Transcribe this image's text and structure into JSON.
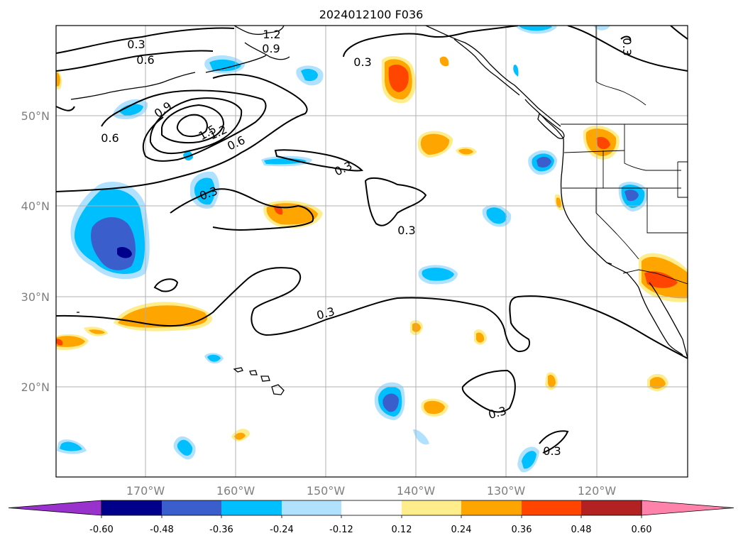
{
  "title": "2024012100 F036",
  "map": {
    "lat_labels": [
      "50°N",
      "40°N",
      "30°N",
      "20°N"
    ],
    "lon_labels": [
      "170°W",
      "160°W",
      "150°W",
      "140°W",
      "130°W",
      "120°W"
    ],
    "contour_labels": [
      "0.3",
      "0.6",
      "0.9",
      "1.2",
      "1.5",
      "1.2",
      "0.9",
      "0.6",
      "0.3",
      "0.3",
      "0.3",
      "0.3",
      "0.3",
      "0.3",
      "0.3",
      "0.3"
    ]
  },
  "colorbar": {
    "ticks": [
      "-0.60",
      "-0.48",
      "-0.36",
      "-0.24",
      "-0.12",
      "0.12",
      "0.24",
      "0.36",
      "0.48",
      "0.60"
    ],
    "colors": [
      "#9932cc",
      "#00008b",
      "#3a5fcd",
      "#00bfff",
      "#b0e2ff",
      "#ffffff",
      "#ffec8b",
      "#ffa500",
      "#ff4500",
      "#b22222",
      "#ff82ab"
    ]
  },
  "fill_colors": {
    "blue_light": "#b0e2ff",
    "blue": "#00bfff",
    "blue_dark": "#3a5fcd",
    "navy": "#00008b",
    "yellow": "#ffec8b",
    "orange": "#ffa500",
    "red_orange": "#ff4500"
  }
}
